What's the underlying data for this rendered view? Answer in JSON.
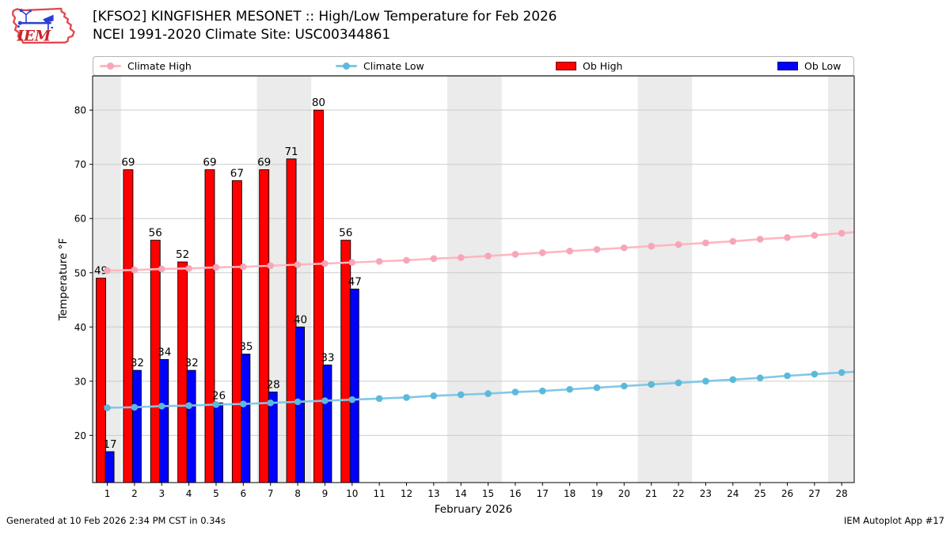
{
  "header": {
    "title_line1": "[KFSO2] KINGFISHER MESONET :: High/Low Temperature for Feb 2026",
    "title_line2": "NCEI 1991-2020 Climate Site: USC00344861"
  },
  "logo": {
    "text": "IEM"
  },
  "legend": {
    "items": [
      {
        "label": "Climate High",
        "swatch": "line-marker",
        "color": "#ffb6c1",
        "marker_color": "#f7a6b8"
      },
      {
        "label": "Climate Low",
        "swatch": "line-marker",
        "color": "#82c7e6",
        "marker_color": "#5db9dc"
      },
      {
        "label": "Ob High",
        "swatch": "patch",
        "color": "#ff0000"
      },
      {
        "label": "Ob Low",
        "swatch": "patch",
        "color": "#0000ff"
      }
    ]
  },
  "chart_data": {
    "type": "bar",
    "title": "[KFSO2] KINGFISHER MESONET :: High/Low Temperature for Feb 2026",
    "xlabel": "February 2026",
    "ylabel": "Temperature °F",
    "x": [
      1,
      2,
      3,
      4,
      5,
      6,
      7,
      8,
      9,
      10,
      11,
      12,
      13,
      14,
      15,
      16,
      17,
      18,
      19,
      20,
      21,
      22,
      23,
      24,
      25,
      26,
      27,
      28
    ],
    "xlim": [
      0.46,
      28.46
    ],
    "ylim": [
      11.3,
      86.3
    ],
    "yticks": [
      20,
      30,
      40,
      50,
      60,
      70,
      80
    ],
    "grid": "horizontal",
    "grid_color": "#cccccc",
    "band_color": "#ebebeb",
    "weekend_bands": [
      [
        0.46,
        1.5
      ],
      [
        6.5,
        8.5
      ],
      [
        13.5,
        15.5
      ],
      [
        20.5,
        22.5
      ],
      [
        27.5,
        28.46
      ]
    ],
    "series": [
      {
        "name": "Ob High",
        "type": "bar",
        "color": "#ff0000",
        "days": [
          1,
          2,
          3,
          4,
          5,
          6,
          7,
          8,
          9,
          10
        ],
        "values": [
          49,
          69,
          56,
          52,
          69,
          67,
          69,
          71,
          80,
          56
        ]
      },
      {
        "name": "Ob Low",
        "type": "bar",
        "color": "#0000ff",
        "days": [
          1,
          2,
          3,
          4,
          5,
          6,
          7,
          8,
          9,
          10
        ],
        "values": [
          17,
          32,
          34,
          32,
          26,
          35,
          28,
          40,
          33,
          47
        ]
      },
      {
        "name": "Climate High",
        "type": "line",
        "color": "#ffb6c1",
        "marker_color": "#f7a6b8",
        "values": [
          50.4,
          50.5,
          50.7,
          50.8,
          51.0,
          51.1,
          51.3,
          51.5,
          51.7,
          51.9,
          52.1,
          52.3,
          52.6,
          52.8,
          53.1,
          53.4,
          53.7,
          54.0,
          54.3,
          54.6,
          54.9,
          55.2,
          55.5,
          55.8,
          56.2,
          56.5,
          56.9,
          57.3
        ]
      },
      {
        "name": "Climate Low",
        "type": "line",
        "color": "#82c7e6",
        "marker_color": "#5db9dc",
        "values": [
          25.1,
          25.2,
          25.4,
          25.5,
          25.7,
          25.8,
          26.0,
          26.2,
          26.4,
          26.6,
          26.8,
          27.0,
          27.3,
          27.5,
          27.7,
          28.0,
          28.2,
          28.5,
          28.8,
          29.1,
          29.4,
          29.7,
          30.0,
          30.3,
          30.6,
          31.0,
          31.3,
          31.6
        ]
      }
    ],
    "legend_position": "top"
  },
  "footer": {
    "left": "Generated at 10 Feb 2026 2:34 PM CST in 0.34s",
    "right": "IEM Autoplot App #17"
  }
}
